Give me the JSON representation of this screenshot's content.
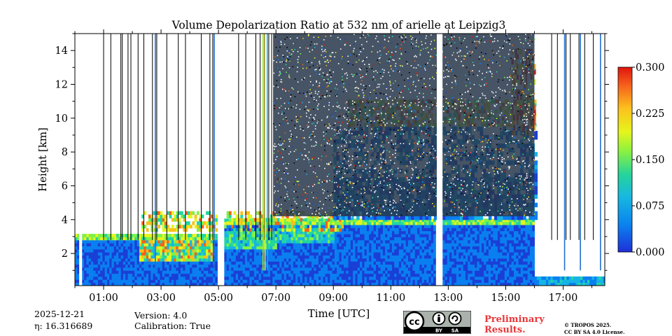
{
  "chart_data": {
    "type": "heatmap",
    "title": "Volume Depolarization Ratio at 532 nm of arielle at Leipzig3",
    "xlabel": "Time [UTC]",
    "ylabel": "Height [km]",
    "xlim": [
      0.0,
      18.45
    ],
    "ylim": [
      0.1,
      15.0
    ],
    "x_ticks": [
      1,
      3,
      5,
      7,
      9,
      11,
      13,
      15,
      17
    ],
    "x_tick_labels": [
      "01:00",
      "03:00",
      "05:00",
      "07:00",
      "09:00",
      "11:00",
      "13:00",
      "15:00",
      "17:00"
    ],
    "y_ticks": [
      2,
      4,
      6,
      8,
      10,
      12,
      14
    ],
    "y_tick_labels": [
      "2",
      "4",
      "6",
      "8",
      "10",
      "12",
      "14"
    ],
    "colorbar": {
      "min": 0.0,
      "max": 0.3,
      "ticks": [
        0.0,
        0.075,
        0.15,
        0.225,
        0.3
      ],
      "tick_labels": [
        "0.000",
        "0.075",
        "0.150",
        "0.225",
        "0.300"
      ],
      "colormap": [
        "#1a3fd6",
        "#0a7ff0",
        "#17b4e6",
        "#22d6a2",
        "#7ef24a",
        "#e4f51e",
        "#fbbf1c",
        "#f6611a",
        "#e41a0f"
      ]
    },
    "features": {
      "boundary_layer_top_km": 3.0,
      "boundary_layer_top_late_km": 4.0,
      "aerosol_layer_km": [
        3.3,
        4.5
      ],
      "cirrus_layer_km": [
        9.5,
        11.0
      ],
      "data_gaps_utc": [
        [
          0.15,
          0.25
        ],
        [
          5.0,
          5.18
        ],
        [
          12.6,
          12.8
        ]
      ],
      "noisy_region_utc": [
        6.9,
        16.0
      ]
    }
  },
  "info": {
    "date": "2025-12-21",
    "eta": "η: 16.316689",
    "version": "Version: 4.0",
    "calibration": "Calibration: True"
  },
  "footer": {
    "preliminary": "Preliminary",
    "results": "Results.",
    "copyright": "© TROPOS 2025.",
    "license": "CC BY SA 4.0 License.",
    "cc_text": "cc",
    "by_text": "BY",
    "sa_text": "SA"
  }
}
